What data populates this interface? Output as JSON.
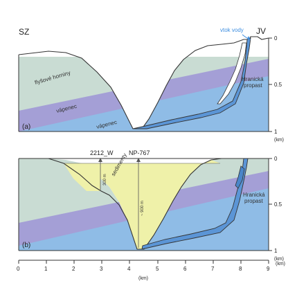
{
  "panel_a": {
    "label": "(a)",
    "left_corner": "SZ",
    "right_corner": "JV",
    "inflow_label": "vtok vody",
    "rock_label_flysch": "flyšové horniny",
    "rock_label_limestone_1": "vápenec",
    "rock_label_limestone_2": "vápenec",
    "abyss_label_line1": "Hranická",
    "abyss_label_line2": "propast",
    "depth_ticks": [
      "0",
      "0.5",
      "1"
    ],
    "depth_unit": "(km)"
  },
  "panel_b": {
    "label": "(b)",
    "borehole_1": "2212_W",
    "borehole_2": "NP-767",
    "borehole_1_depth": "300 m",
    "borehole_2_depth": "~ 900 m",
    "sediment_label": "sedimenty",
    "abyss_label_line1": "Hranická",
    "abyss_label_line2": "propast",
    "depth_ticks": [
      "0",
      "0.5",
      "1"
    ],
    "depth_unit": "(km)"
  },
  "x_axis": {
    "ticks": [
      "0",
      "1",
      "2",
      "3",
      "4",
      "5",
      "6",
      "7",
      "8",
      "9"
    ],
    "unit": "(km)",
    "end_unit": "(km)"
  },
  "colors": {
    "flysch": "#c9dcd3",
    "limestone_band": "#a49fd6",
    "limestone_lower": "#8fbce6",
    "sediment": "#eff1a9",
    "water": "#5b95d6",
    "inflow_text": "#3f8fe0",
    "outline": "#333333"
  }
}
